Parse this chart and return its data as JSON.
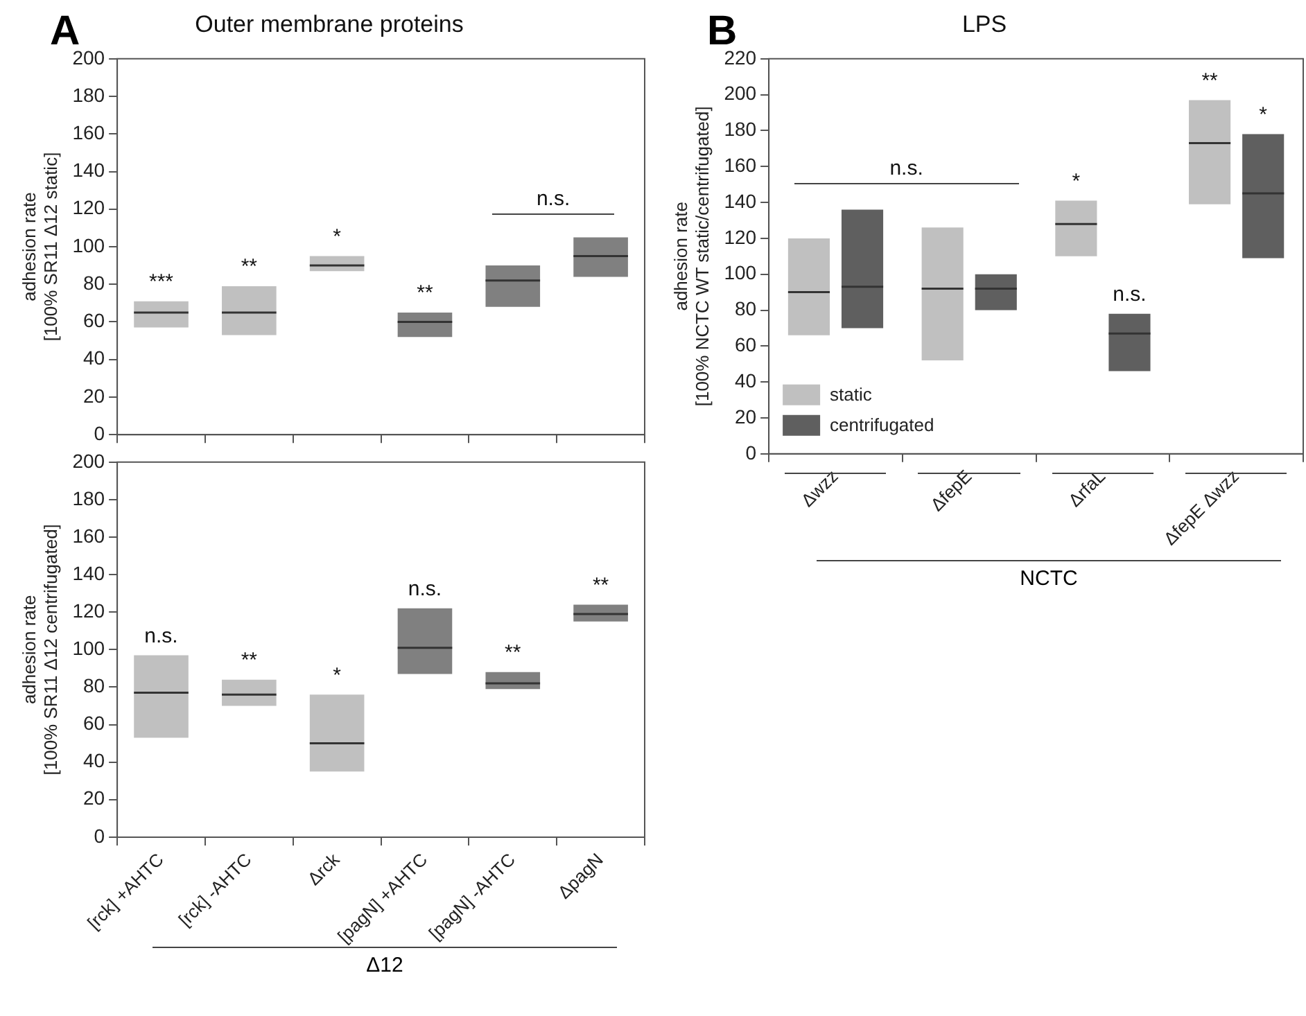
{
  "chart_data": [
    {
      "type": "box",
      "title": "Outer membrane proteins",
      "ylabel": "adhesion rate\n[100% SR11 Δ12 static]",
      "tick_labels": "y",
      "grid": false,
      "categories": [
        "[rck] +AHTC",
        "[rck] -AHTC",
        "Δrck",
        "[pagN] +AHTC",
        "[pagN] -AHTC",
        "ΔpagN"
      ],
      "colors": [
        "#c0c0c0",
        "#c0c0c0",
        "#c0c0c0",
        "#808080",
        "#808080",
        "#808080"
      ],
      "boxes": [
        {
          "low": 57,
          "q1": 57,
          "median": 65,
          "q3": 71,
          "high": 71
        },
        {
          "low": 53,
          "q1": 53,
          "median": 65,
          "q3": 79,
          "high": 79
        },
        {
          "low": 87,
          "q1": 87,
          "median": 90,
          "q3": 95,
          "high": 95
        },
        {
          "low": 52,
          "q1": 52,
          "median": 60,
          "q3": 65,
          "high": 65
        },
        {
          "low": 68,
          "q1": 68,
          "median": 82,
          "q3": 90,
          "high": 90
        },
        {
          "low": 84,
          "q1": 84,
          "median": 95,
          "q3": 105,
          "high": 105
        }
      ],
      "ylim": [
        0,
        200
      ],
      "yticks": [
        0,
        20,
        40,
        60,
        80,
        100,
        120,
        140,
        160,
        180,
        200
      ],
      "annotations": [
        {
          "text": "***",
          "x": "[rck] +AHTC",
          "y": 71
        },
        {
          "text": "**",
          "x": "[rck] -AHTC",
          "y": 79
        },
        {
          "text": "*",
          "x": "Δrck",
          "y": 95
        },
        {
          "text": "**",
          "x": "[pagN] +AHTC",
          "y": 65
        },
        {
          "text": "n.s.",
          "x": "ΔpagN",
          "y": 105
        },
        "A"
      ]
    },
    {
      "type": "box",
      "ylabel": "adhesion rate\n[100% SR11 Δ12 centrifugated]",
      "grid": false,
      "categories": [
        "[rck] +AHTC",
        "[rck] -AHTC",
        "Δrck",
        "[pagN] +AHTC",
        "[pagN] -AHTC",
        "ΔpagN"
      ],
      "colors": [
        "#c0c0c0",
        "#c0c0c0",
        "#c0c0c0",
        "#808080",
        "#808080",
        "#808080"
      ],
      "boxes": [
        {
          "low": 53,
          "q1": 53,
          "median": 77,
          "q3": 97,
          "high": 97
        },
        {
          "low": 70,
          "q1": 70,
          "median": 76,
          "q3": 84,
          "high": 84
        },
        {
          "low": 35,
          "q1": 35,
          "median": 50,
          "q3": 76,
          "high": 76
        },
        {
          "low": 87,
          "q1": 87,
          "median": 101,
          "q3": 122,
          "high": 122
        },
        {
          "low": 79,
          "q1": 79,
          "median": 82,
          "q3": 88,
          "high": 88
        },
        {
          "low": 115,
          "q1": 115,
          "median": 119,
          "q3": 124,
          "high": 124
        }
      ],
      "ylim": [
        0,
        200
      ],
      "yticks": [
        0,
        20,
        40,
        60,
        80,
        100,
        120,
        140,
        160,
        180,
        200
      ],
      "annotations": [
        {
          "text": "n.s.",
          "x": "[rck] +AHTC",
          "y": 97
        },
        {
          "text": "**",
          "x": "[rck] -AHTC",
          "y": 84
        },
        {
          "text": "*",
          "x": "Δrck",
          "y": 76
        },
        {
          "text": "n.s.",
          "x": "[pagN] +AHTC",
          "y": 122
        },
        {
          "text": "**",
          "x": "[pagN] -AHTC",
          "y": 88
        },
        {
          "text": "**",
          "x": "ΔpagN",
          "y": 124
        },
        "Δ12"
      ]
    },
    {
      "type": "box",
      "title": "LPS",
      "ylabel": "adhesion rate\n[100% NCTC WT static/centrifugated]",
      "grid": false,
      "legend": "bottom left",
      "categories": [
        "Δwzz",
        "ΔfepE",
        "ΔrfaL",
        "ΔfepE Δwzz"
      ],
      "series": [
        {
          "name": "static",
          "color": "#c0c0c0",
          "boxes": [
            {
              "low": 66,
              "q1": 66,
              "median": 90,
              "q3": 120,
              "high": 120
            },
            {
              "low": 52,
              "q1": 52,
              "median": 92,
              "q3": 126,
              "high": 126
            },
            {
              "low": 110,
              "q1": 110,
              "median": 128,
              "q3": 141,
              "high": 141
            },
            {
              "low": 139,
              "q1": 139,
              "median": 173,
              "q3": 197,
              "high": 197
            }
          ]
        },
        {
          "name": "centrifugated",
          "color": "#5f5f5f",
          "boxes": [
            {
              "low": 70,
              "q1": 70,
              "median": 93,
              "q3": 136,
              "high": 136
            },
            {
              "low": 80,
              "q1": 80,
              "median": 92,
              "q3": 100,
              "high": 100
            },
            {
              "low": 46,
              "q1": 46,
              "median": 67,
              "q3": 78,
              "high": 78
            },
            {
              "low": 109,
              "q1": 109,
              "median": 145,
              "q3": 178,
              "high": 178
            }
          ]
        }
      ],
      "ylim": [
        0,
        220
      ],
      "yticks": [
        0,
        20,
        40,
        60,
        80,
        100,
        120,
        140,
        160,
        180,
        200,
        220
      ],
      "annotations": [
        {
          "text": "n.s.",
          "x": "Δwzz",
          "y": 136
        },
        {
          "text": "*",
          "x": "ΔrfaL",
          "y": 141
        },
        {
          "text": "n.s.",
          "x": "ΔrfaL",
          "y": 78
        },
        {
          "text": "**",
          "x": "ΔfepE Δwzz",
          "y": 197
        },
        {
          "text": "*",
          "x": "ΔfepE Δwzz",
          "y": 178
        },
        "B",
        "NCTC"
      ]
    }
  ]
}
